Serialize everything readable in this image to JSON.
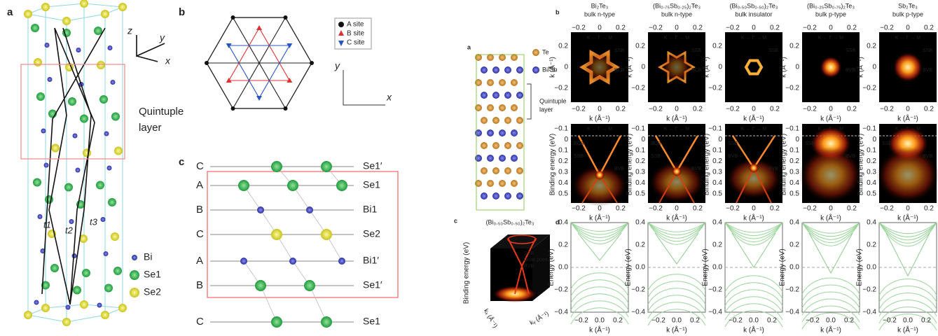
{
  "left": {
    "a": {
      "label": "a",
      "axes": [
        "z",
        "y",
        "x"
      ],
      "hopping": [
        "t1",
        "t2",
        "t3"
      ],
      "quintuple": [
        "Quintuple",
        "layer"
      ],
      "legend": [
        "Bi",
        "Se1",
        "Se2"
      ]
    },
    "b": {
      "label": "b",
      "legend": [
        "A site",
        "B site",
        "C site"
      ],
      "axes": [
        "y",
        "x"
      ]
    },
    "c": {
      "label": "c",
      "layers": [
        {
          "site": "C",
          "name": "Se1′"
        },
        {
          "site": "A",
          "name": "Se1"
        },
        {
          "site": "B",
          "name": "Bi1"
        },
        {
          "site": "C",
          "name": "Se2"
        },
        {
          "site": "A",
          "name": "Bi1′"
        },
        {
          "site": "B",
          "name": "Se1′"
        },
        {
          "site": "C",
          "name": "Se1"
        }
      ]
    }
  },
  "right": {
    "a": {
      "label": "a",
      "legend": [
        "Te",
        "Bi/Sb"
      ],
      "quintuple": [
        "Quintuple",
        "layer"
      ]
    },
    "b": {
      "label": "b",
      "columns": [
        {
          "title": "Bi₂Te₃",
          "subtitle": "bulk n-type",
          "top_notes": [
            "SSB",
            "BCB"
          ],
          "bottom_notes": [
            "BCB",
            "SSB",
            "BVB"
          ]
        },
        {
          "title": "(Bi₀.₇₅Sb₀.₂₅)₂Te₃",
          "subtitle": "bulk n-type",
          "top_notes": [
            "SSB",
            "BCB"
          ],
          "bottom_notes": [
            "BCB",
            "SSB",
            "BVB"
          ]
        },
        {
          "title": "(Bi₀.₅₀Sb₀.₅₀)₂Te₃",
          "subtitle": "bulk insulator",
          "top_notes": [
            "SSB"
          ],
          "bottom_notes": [
            "SSB",
            "BVB",
            "BVB"
          ]
        },
        {
          "title": "(Bi₀.₂₅Sb₀.₇₅)₂Te₃",
          "subtitle": "bulk p-type",
          "top_notes": [
            "SSB",
            "BVB"
          ],
          "bottom_notes": [
            "SSB",
            "BVB"
          ]
        },
        {
          "title": "Sb₂Te₃",
          "subtitle": "bulk p-type",
          "top_notes": [
            "SSB",
            "BVB"
          ],
          "bottom_notes": [
            "SSB",
            "BVB"
          ]
        }
      ],
      "path": "K ← Γ → M",
      "k_ticks": [
        "−0.2",
        "0",
        "0.2"
      ],
      "ky_ticks": [
        "0.2",
        "0",
        "−0.2"
      ],
      "be_ticks": [
        "−0.1",
        "0",
        "0.1",
        "0.2",
        "0.3",
        "0.4",
        "0.5"
      ],
      "k_label": "k (Å⁻¹)",
      "ky_label": "k (Å⁻¹)",
      "be_label": "Binding energy (eV)"
    },
    "c": {
      "label": "c",
      "title": "(Bi₀.₅₀Sb₀.₅₀)₂Te₃",
      "notes": [
        "SSB",
        "Dirac point",
        "BVB"
      ],
      "y_label": "Binding energy (eV)",
      "kx_label": "kₓ (Å⁻¹)",
      "ky_label": "kᵧ (Å⁻¹)"
    },
    "d": {
      "label": "d",
      "e_ticks": [
        "0.4",
        "0.2",
        "0.0",
        "−0.2",
        "−0.4"
      ],
      "k_ticks": [
        "−0.2",
        "0.0",
        "0.2"
      ],
      "y_label": "Energy (eV)",
      "k_label": "k (Å⁻¹)"
    }
  }
}
